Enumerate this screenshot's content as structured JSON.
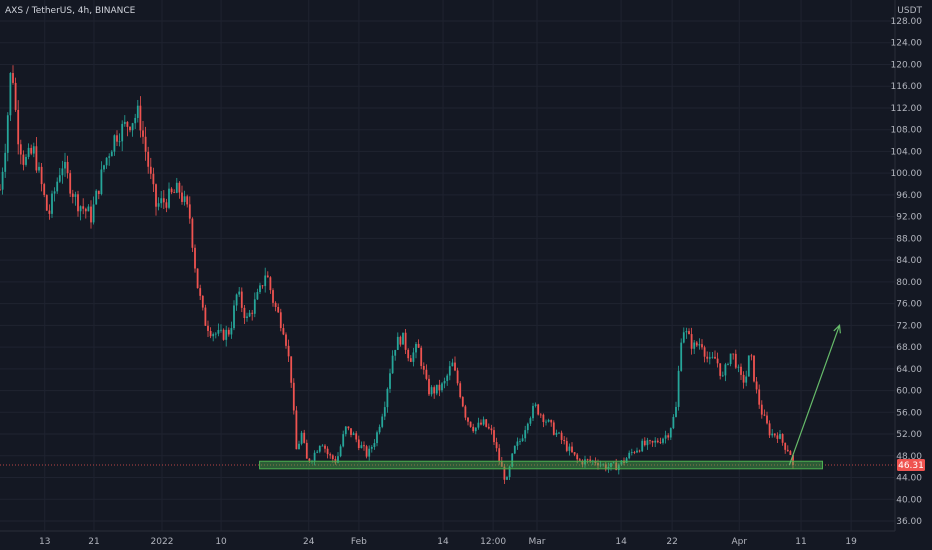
{
  "header": {
    "title": "AXS / TetherUS, 4h, BINANCE",
    "currency": "USDT"
  },
  "colors": {
    "background": "#141823",
    "up": "#26a69a",
    "down": "#ef5350",
    "zone_fill": "#4caf50",
    "arrow": "#66bb6a",
    "price_badge": "#ef5350"
  },
  "chart_data": {
    "type": "candlestick",
    "title": "AXS / TetherUS, 4h, BINANCE",
    "ylabel": "USDT",
    "ylim": [
      34,
      130
    ],
    "y_ticks": [
      36,
      40,
      44,
      48,
      52,
      56,
      60,
      64,
      68,
      72,
      76,
      80,
      84,
      88,
      92,
      96,
      100,
      104,
      108,
      112,
      116,
      120,
      124,
      128
    ],
    "x_ticks": [
      {
        "label": "13",
        "t": 0.05
      },
      {
        "label": "21",
        "t": 0.105
      },
      {
        "label": "2022",
        "t": 0.181
      },
      {
        "label": "10",
        "t": 0.247
      },
      {
        "label": "24",
        "t": 0.345
      },
      {
        "label": "Feb",
        "t": 0.401
      },
      {
        "label": "14",
        "t": 0.495
      },
      {
        "label": "12:00",
        "t": 0.551
      },
      {
        "label": "Mar",
        "t": 0.6
      },
      {
        "label": "14",
        "t": 0.694
      },
      {
        "label": "22",
        "t": 0.751
      },
      {
        "label": "Apr",
        "t": 0.826
      },
      {
        "label": "11",
        "t": 0.895
      },
      {
        "label": "19",
        "t": 0.951
      }
    ],
    "anchors": [
      [
        0.0,
        97
      ],
      [
        0.007,
        107
      ],
      [
        0.013,
        121
      ],
      [
        0.019,
        108
      ],
      [
        0.027,
        102
      ],
      [
        0.038,
        104
      ],
      [
        0.054,
        92
      ],
      [
        0.069,
        102
      ],
      [
        0.085,
        95
      ],
      [
        0.102,
        92
      ],
      [
        0.117,
        102
      ],
      [
        0.129,
        107
      ],
      [
        0.142,
        109
      ],
      [
        0.155,
        111
      ],
      [
        0.165,
        102
      ],
      [
        0.174,
        94
      ],
      [
        0.185,
        95
      ],
      [
        0.2,
        97
      ],
      [
        0.212,
        92
      ],
      [
        0.22,
        80
      ],
      [
        0.228,
        73
      ],
      [
        0.236,
        71
      ],
      [
        0.246,
        70
      ],
      [
        0.257,
        71
      ],
      [
        0.265,
        78
      ],
      [
        0.276,
        73
      ],
      [
        0.29,
        78
      ],
      [
        0.297,
        82
      ],
      [
        0.306,
        76
      ],
      [
        0.318,
        71
      ],
      [
        0.325,
        63
      ],
      [
        0.331,
        49
      ],
      [
        0.337,
        52
      ],
      [
        0.343,
        47
      ],
      [
        0.35,
        48
      ],
      [
        0.359,
        51
      ],
      [
        0.367,
        48
      ],
      [
        0.376,
        47
      ],
      [
        0.386,
        53
      ],
      [
        0.394,
        52
      ],
      [
        0.402,
        50
      ],
      [
        0.411,
        48
      ],
      [
        0.421,
        52
      ],
      [
        0.43,
        58
      ],
      [
        0.44,
        68
      ],
      [
        0.449,
        70
      ],
      [
        0.458,
        66
      ],
      [
        0.467,
        68
      ],
      [
        0.478,
        60
      ],
      [
        0.487,
        60
      ],
      [
        0.496,
        61
      ],
      [
        0.505,
        65
      ],
      [
        0.512,
        61
      ],
      [
        0.521,
        55
      ],
      [
        0.53,
        53
      ],
      [
        0.54,
        54
      ],
      [
        0.55,
        52
      ],
      [
        0.558,
        47
      ],
      [
        0.566,
        43
      ],
      [
        0.574,
        49
      ],
      [
        0.582,
        51
      ],
      [
        0.59,
        55
      ],
      [
        0.598,
        57
      ],
      [
        0.608,
        55
      ],
      [
        0.617,
        53
      ],
      [
        0.627,
        51
      ],
      [
        0.636,
        49
      ],
      [
        0.646,
        47
      ],
      [
        0.657,
        47
      ],
      [
        0.667,
        47
      ],
      [
        0.676,
        46
      ],
      [
        0.687,
        46
      ],
      [
        0.697,
        47
      ],
      [
        0.708,
        49
      ],
      [
        0.718,
        50
      ],
      [
        0.728,
        50
      ],
      [
        0.737,
        51
      ],
      [
        0.746,
        52
      ],
      [
        0.755,
        56
      ],
      [
        0.762,
        72
      ],
      [
        0.768,
        70
      ],
      [
        0.775,
        68
      ],
      [
        0.784,
        69
      ],
      [
        0.792,
        65
      ],
      [
        0.8,
        66
      ],
      [
        0.808,
        62
      ],
      [
        0.815,
        67
      ],
      [
        0.821,
        66
      ],
      [
        0.827,
        62
      ],
      [
        0.833,
        62
      ],
      [
        0.838,
        67
      ],
      [
        0.846,
        59
      ],
      [
        0.853,
        55
      ],
      [
        0.861,
        52
      ],
      [
        0.869,
        52
      ],
      [
        0.876,
        50
      ],
      [
        0.882,
        49
      ],
      [
        0.888,
        46.3
      ]
    ],
    "support_zone": {
      "low": 45.6,
      "high": 47.0,
      "x_from": 0.29,
      "x_to": 0.919
    },
    "projection_arrow": {
      "from": {
        "t": 0.882,
        "price": 46.3
      },
      "to": {
        "t": 0.938,
        "price": 72.0
      }
    },
    "current_price": {
      "value": 46.31,
      "label": "46.31"
    }
  }
}
